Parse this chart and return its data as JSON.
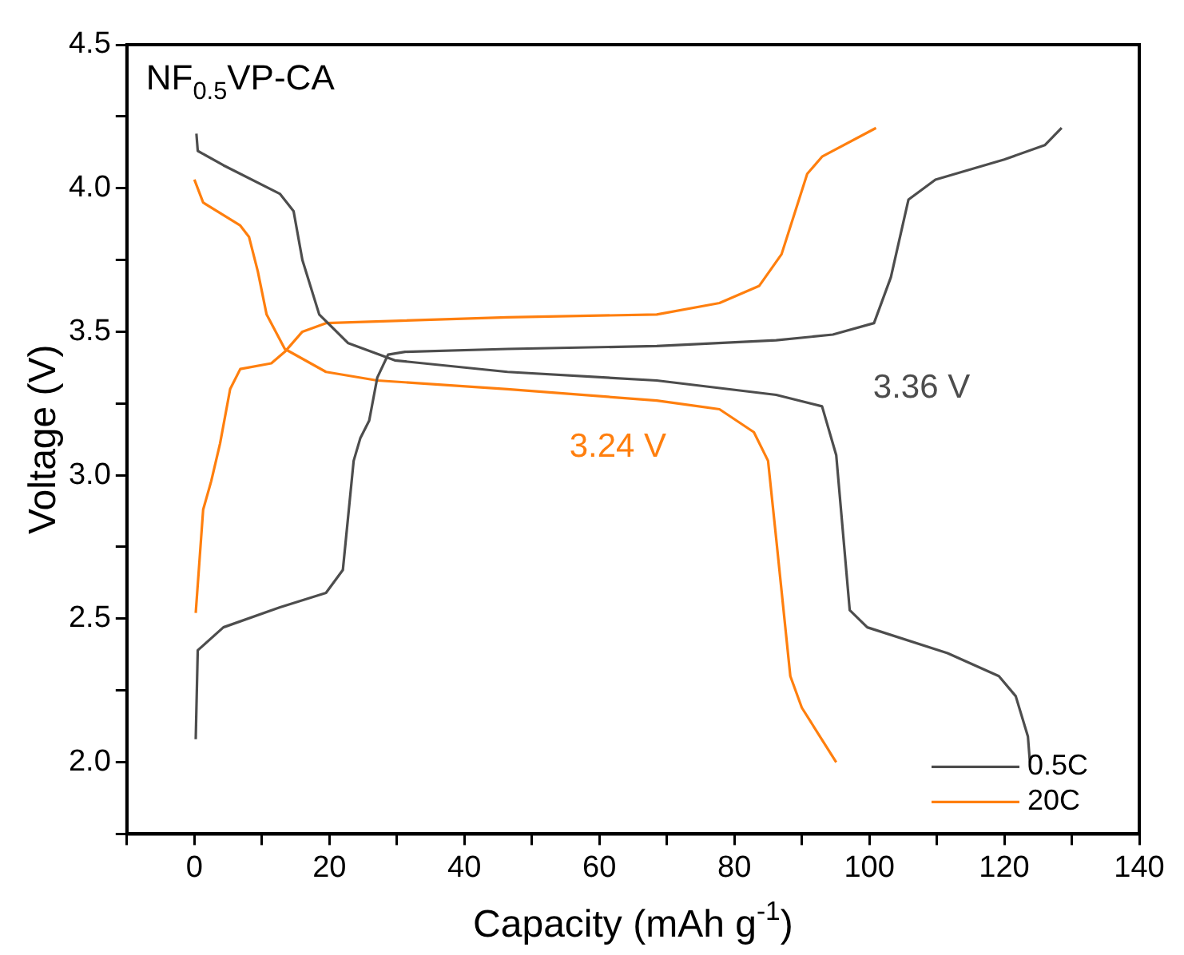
{
  "chart_data": {
    "type": "line",
    "title": "NF$_{0.5}$VP-CA",
    "xlabel": "Capacity (mAh g$^{-1}$)",
    "ylabel": "Voltage (V)",
    "xlim": [
      -10,
      140
    ],
    "ylim": [
      1.75,
      4.5
    ],
    "xticks": [
      {
        "value": -10,
        "label": null
      },
      0,
      {
        "value": 10,
        "label": null
      },
      20,
      {
        "value": 30,
        "label": null
      },
      40,
      {
        "value": 50,
        "label": null
      },
      60,
      {
        "value": 70,
        "label": null
      },
      80,
      {
        "value": 90,
        "label": null
      },
      100,
      {
        "value": 110,
        "label": null
      },
      120,
      {
        "value": 130,
        "label": null
      },
      140
    ],
    "yticks": [
      {
        "value": 1.75,
        "label": null
      },
      {
        "value": 2,
        "label": "2.0"
      },
      {
        "value": 2.25,
        "label": null
      },
      2.5,
      {
        "value": 2.75,
        "label": null
      },
      {
        "value": 3,
        "label": "3.0"
      },
      {
        "value": 3.25,
        "label": null
      },
      3.5,
      {
        "value": 3.75,
        "label": null
      },
      {
        "value": 4,
        "label": "4.0"
      },
      {
        "value": 4.25,
        "label": null
      },
      4.5
    ],
    "grid": false,
    "legend": "bottom right",
    "marker": "none",
    "line_style": "solid",
    "series": [
      {
        "name": "0.5C",
        "color": "#4d4d4d",
        "x": [
          0.2,
          0.5,
          4.3,
          12.7,
          19.5,
          22,
          23.6,
          24.6,
          25.9,
          27.1,
          28.7,
          31.2,
          46.4,
          68.5,
          86.2,
          94.6,
          100.7,
          103.2,
          105.8,
          109.8,
          120,
          126,
          128.5,
          null,
          0.3,
          0.5,
          4.3,
          12.7,
          14.7,
          16,
          18.5,
          22.8,
          29.7,
          46.4,
          68.5,
          86.2,
          93,
          95.1,
          97.1,
          99.7,
          111.6,
          119.2,
          121.7,
          123.5,
          123.8
        ],
        "values": [
          2.08,
          2.39,
          2.47,
          2.54,
          2.59,
          2.67,
          3.05,
          3.13,
          3.19,
          3.34,
          3.42,
          3.43,
          3.44,
          3.45,
          3.47,
          3.49,
          3.53,
          3.69,
          3.96,
          4.03,
          4.1,
          4.15,
          4.21,
          null,
          4.19,
          4.13,
          4.08,
          3.98,
          3.92,
          3.75,
          3.56,
          3.46,
          3.4,
          3.36,
          3.33,
          3.28,
          3.24,
          3.07,
          2.53,
          2.47,
          2.38,
          2.3,
          2.23,
          2.09,
          2.0
        ]
      },
      {
        "name": "20C",
        "color": "#ff7f0e",
        "x": [
          0.2,
          1.3,
          2.5,
          3.8,
          5.3,
          6.8,
          11.4,
          13.4,
          16,
          19.5,
          46.4,
          68.5,
          77.8,
          83.7,
          87,
          90.8,
          93,
          101,
          null,
          0,
          1.3,
          6.8,
          8.1,
          9.4,
          10.7,
          13.4,
          19.5,
          27.1,
          46.4,
          68.5,
          77.8,
          82.9,
          85,
          86.2,
          88.3,
          90,
          95.1
        ],
        "values": [
          2.52,
          2.88,
          2.98,
          3.11,
          3.3,
          3.37,
          3.39,
          3.43,
          3.5,
          3.53,
          3.55,
          3.56,
          3.6,
          3.66,
          3.77,
          4.05,
          4.11,
          4.21,
          null,
          4.03,
          3.95,
          3.87,
          3.83,
          3.71,
          3.56,
          3.44,
          3.36,
          3.33,
          3.3,
          3.26,
          3.23,
          3.15,
          3.05,
          2.78,
          2.3,
          2.19,
          2.0
        ]
      }
    ],
    "annotations": [
      "3.36 V",
      "3.24 V"
    ]
  }
}
